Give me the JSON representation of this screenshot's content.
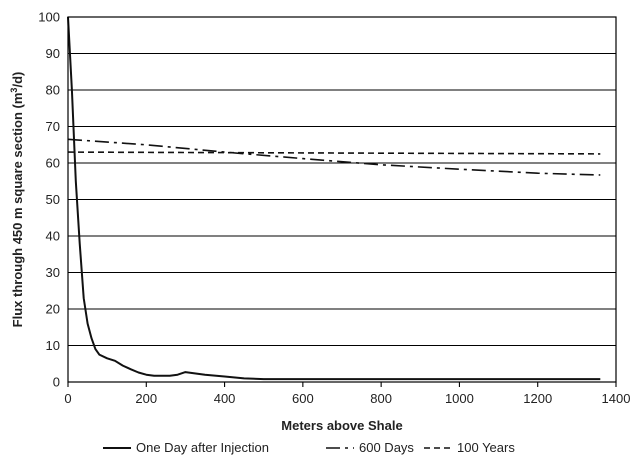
{
  "chart_data": {
    "type": "line",
    "title": "",
    "xlabel": "Meters above Shale",
    "ylabel_main": "Flux through 450 m square section (m",
    "ylabel_sup": "3",
    "ylabel_tail": "/d)",
    "xlim": [
      0,
      1400
    ],
    "ylim": [
      0,
      100
    ],
    "x_ticks": [
      0,
      200,
      400,
      600,
      800,
      1000,
      1200,
      1400
    ],
    "y_ticks": [
      0,
      10,
      20,
      30,
      40,
      50,
      60,
      70,
      80,
      90,
      100
    ],
    "grid": "horizontal",
    "legend_position": "bottom",
    "series": [
      {
        "name": "One Day after Injection",
        "style": "solid",
        "x": [
          0,
          10,
          20,
          30,
          40,
          50,
          60,
          70,
          80,
          100,
          120,
          140,
          160,
          180,
          200,
          220,
          260,
          280,
          300,
          350,
          400,
          450,
          500,
          700,
          1000,
          1360
        ],
        "y": [
          100,
          80,
          55,
          38,
          23,
          16,
          12,
          9,
          7.5,
          6.5,
          5.8,
          4.5,
          3.5,
          2.6,
          2.0,
          1.7,
          1.7,
          2.0,
          2.7,
          2.0,
          1.5,
          1.0,
          0.8,
          0.8,
          0.8,
          0.8
        ]
      },
      {
        "name": "600 Days",
        "style": "dashdot",
        "x": [
          0,
          200,
          400,
          600,
          800,
          1000,
          1200,
          1360
        ],
        "y": [
          66.5,
          65,
          63,
          61.2,
          59.5,
          58.3,
          57.2,
          56.7
        ]
      },
      {
        "name": "100 Years",
        "style": "dashed",
        "x": [
          0,
          1360
        ],
        "y": [
          63,
          62.5
        ]
      }
    ]
  }
}
